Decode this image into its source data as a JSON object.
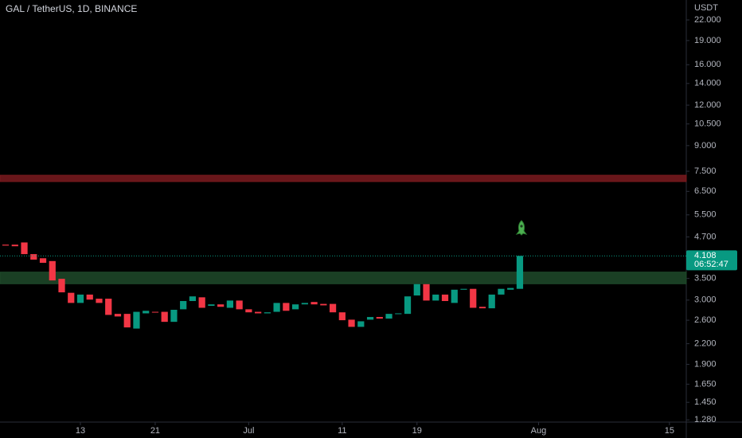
{
  "chart_data": {
    "type": "candlestick",
    "title": "GAL / TetherUS, 1D, BINANCE",
    "currency": "USDT",
    "x": [
      5,
      6,
      7,
      8,
      9,
      10,
      11,
      12,
      13,
      14,
      15,
      16,
      17,
      18,
      19,
      20,
      21,
      22,
      23,
      24,
      25,
      26,
      27,
      28,
      29,
      30,
      31,
      32,
      33,
      34,
      35,
      36,
      37,
      38,
      39,
      40,
      41,
      42,
      43,
      44,
      45,
      46,
      47,
      48,
      49,
      50,
      51,
      52,
      53,
      54,
      55,
      56,
      57,
      58,
      59,
      60
    ],
    "open": [
      4.45,
      4.45,
      4.52,
      4.16,
      4.04,
      3.96,
      3.49,
      3.16,
      2.94,
      3.12,
      3.03,
      3.03,
      2.72,
      2.72,
      2.45,
      2.73,
      2.76,
      2.76,
      2.57,
      2.81,
      2.98,
      3.06,
      2.88,
      2.91,
      2.84,
      2.99,
      2.81,
      2.76,
      2.73,
      2.76,
      2.94,
      2.81,
      2.91,
      2.96,
      2.92,
      2.92,
      2.75,
      2.61,
      2.48,
      2.61,
      2.66,
      2.63,
      2.72,
      2.72,
      3.1,
      3.36,
      2.99,
      3.12,
      2.94,
      3.23,
      3.25,
      2.86,
      2.83,
      3.12,
      3.23,
      3.25
    ],
    "close": [
      4.42,
      4.4,
      4.16,
      4.0,
      3.91,
      3.45,
      3.17,
      2.94,
      3.12,
      3.01,
      2.94,
      2.7,
      2.67,
      2.47,
      2.76,
      2.78,
      2.75,
      2.57,
      2.8,
      2.98,
      3.08,
      2.84,
      2.91,
      2.86,
      2.99,
      2.81,
      2.75,
      2.73,
      2.75,
      2.94,
      2.78,
      2.91,
      2.94,
      2.91,
      2.89,
      2.75,
      2.6,
      2.48,
      2.58,
      2.66,
      2.63,
      2.72,
      2.73,
      3.08,
      3.36,
      2.99,
      3.12,
      2.98,
      3.23,
      3.25,
      2.84,
      2.83,
      3.12,
      3.25,
      3.27,
      4.108
    ],
    "up_color": "#089981",
    "down_color": "#f23645",
    "zones": [
      {
        "low": 6.97,
        "high": 7.29,
        "color": "#7a1a1e"
      },
      {
        "low": 3.37,
        "high": 3.66,
        "color": "#1e4a2a"
      }
    ],
    "last_price": 4.108,
    "countdown": "06:52:47",
    "log_scale": true,
    "xlim": [
      4.4,
      77.8
    ],
    "xticks": [
      13,
      21,
      {
        "value": 31,
        "label": "Jul"
      },
      {
        "value": 41,
        "label": "11"
      },
      {
        "value": 49,
        "label": "19"
      },
      {
        "value": 62,
        "label": "Aug"
      },
      {
        "value": 76,
        "label": "15"
      }
    ],
    "ylim": [
      1.26,
      25.35
    ],
    "yticks": [
      {
        "value": 22,
        "label": "22.000"
      },
      {
        "value": 19,
        "label": "19.000"
      },
      {
        "value": 16,
        "label": "16.000"
      },
      {
        "value": 14,
        "label": "14.000"
      },
      {
        "value": 12,
        "label": "12.000"
      },
      {
        "value": 10.5,
        "label": "10.500"
      },
      {
        "value": 9,
        "label": "9.000"
      },
      {
        "value": 7.5,
        "label": "7.500"
      },
      {
        "value": 6.5,
        "label": "6.500"
      },
      {
        "value": 5.5,
        "label": "5.500"
      },
      {
        "value": 4.7,
        "label": "4.700"
      },
      {
        "value": 3.5,
        "label": "3.500"
      },
      {
        "value": 3,
        "label": "3.000"
      },
      {
        "value": 2.6,
        "label": "2.600"
      },
      {
        "value": 2.2,
        "label": "2.200"
      },
      {
        "value": 1.9,
        "label": "1.900"
      },
      {
        "value": 1.65,
        "label": "1.650"
      },
      {
        "value": 1.45,
        "label": "1.450"
      },
      {
        "value": 1.28,
        "label": "1.280"
      }
    ]
  }
}
